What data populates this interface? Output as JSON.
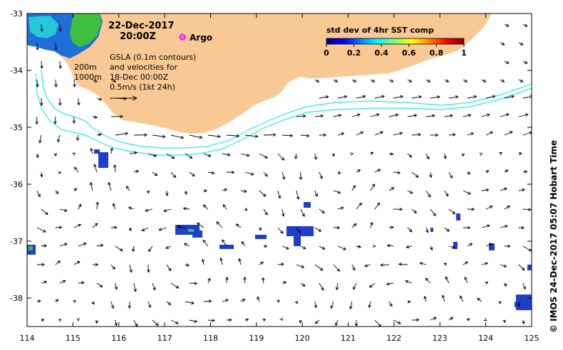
{
  "map": {
    "date": "22-Dec-2017",
    "time": "20:00Z",
    "argo_label": "Argo",
    "contour_label_200": "200m",
    "contour_label_1000": "1000m",
    "gsla_line1": "GSLA (0.1m contours)",
    "gsla_line2": "and velocities for",
    "gsla_line3": "18-Dec 00:00Z",
    "scale_label": "0.5m/s (1kt 24h)",
    "credit": "© IMOS 24-Dec-2017 05:07 Hobart Time",
    "colors": {
      "land": "#f9c995",
      "bathy": "#2ee6e6",
      "argo": "#ff00ff",
      "arrow": "#000000"
    }
  },
  "colorbar": {
    "title": "std dev of 4hr SST comp",
    "ticks": [
      "0",
      "0.2",
      "0.4",
      "0.6",
      "0.8",
      "1"
    ],
    "range": [
      0,
      1
    ]
  },
  "axes": {
    "x_ticks": [
      "114",
      "115",
      "116",
      "117",
      "118",
      "119",
      "120",
      "121",
      "122",
      "123",
      "124",
      "125"
    ],
    "y_ticks": [
      "-33",
      "-34",
      "-35",
      "-36",
      "-37",
      "-38"
    ],
    "x_range": [
      114,
      125
    ],
    "y_range": [
      -38.5,
      -33
    ]
  }
}
